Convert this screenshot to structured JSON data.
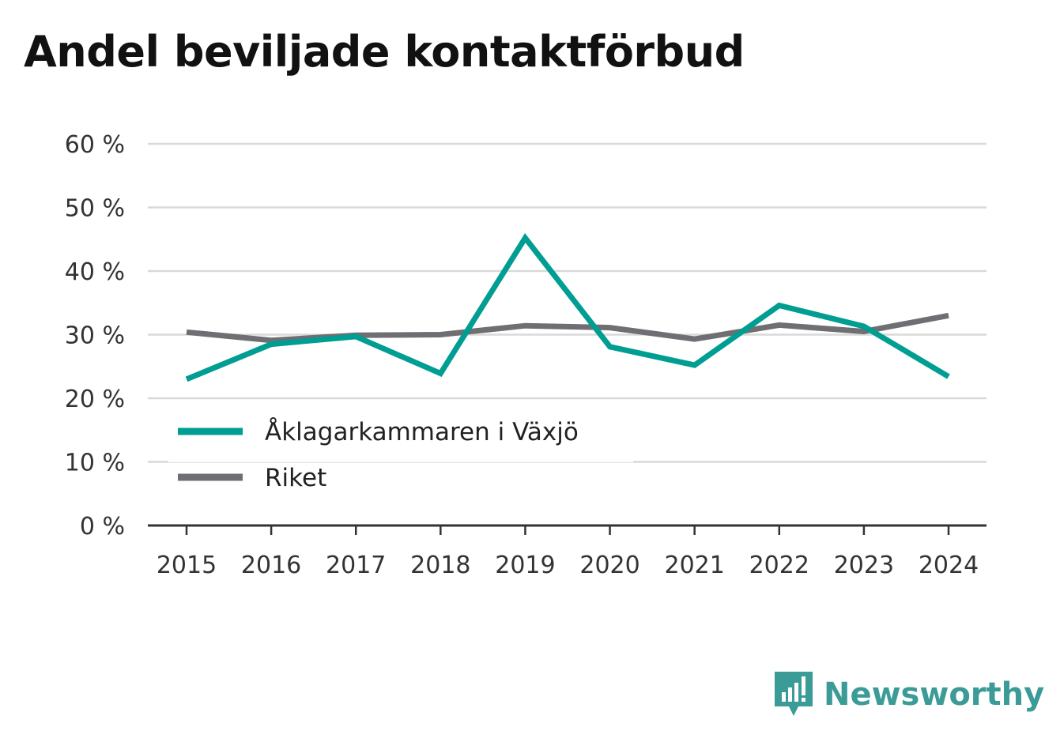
{
  "title": "Andel beviljade kontaktförbud",
  "brand": {
    "name": "Newsworthy",
    "icon": "newsworthy-logo-icon"
  },
  "colors": {
    "series_1": "#009e92",
    "series_2": "#6f6e72",
    "brand": "#3a9b97",
    "grid": "#d9d9d9",
    "axis": "#333333"
  },
  "chart_data": {
    "type": "line",
    "title": "Andel beviljade kontaktförbud",
    "xlabel": "",
    "ylabel": "",
    "x": [
      "2015",
      "2016",
      "2017",
      "2018",
      "2019",
      "2020",
      "2021",
      "2022",
      "2023",
      "2024"
    ],
    "ylim": [
      0,
      60
    ],
    "yticks": [
      0,
      10,
      20,
      30,
      40,
      50,
      60
    ],
    "ytick_labels": [
      "0 %",
      "10 %",
      "20 %",
      "30 %",
      "40 %",
      "50 %",
      "60 %"
    ],
    "grid": true,
    "legend_position": "bottom-left",
    "series": [
      {
        "name": "Åklagarkammaren i Växjö",
        "color": "#009e92",
        "values": [
          23.0,
          28.5,
          29.7,
          23.9,
          45.2,
          28.1,
          25.2,
          34.6,
          31.3,
          23.4
        ]
      },
      {
        "name": "Riket",
        "color": "#6f6e72",
        "values": [
          30.4,
          29.1,
          29.9,
          30.0,
          31.4,
          31.1,
          29.3,
          31.5,
          30.5,
          33.0
        ]
      }
    ]
  }
}
